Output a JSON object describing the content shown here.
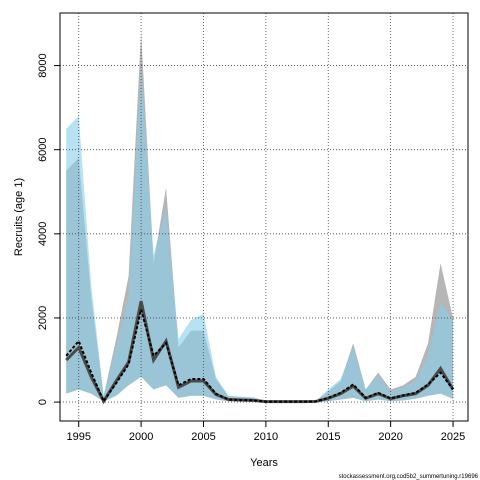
{
  "chart_data": {
    "type": "area",
    "xlabel": "Years",
    "ylabel": "Recruits (age 1)",
    "xlim": [
      1993.5,
      2026.2
    ],
    "ylim": [
      -450,
      9250
    ],
    "x_ticks": [
      1995,
      2000,
      2005,
      2010,
      2015,
      2020,
      2025
    ],
    "y_ticks": [
      0,
      2000,
      4000,
      6000,
      8000
    ],
    "grid": true,
    "years": [
      1994,
      1995,
      1996,
      1997,
      1998,
      1999,
      2000,
      2001,
      2002,
      2003,
      2004,
      2005,
      2006,
      2007,
      2008,
      2009,
      2010,
      2011,
      2012,
      2013,
      2014,
      2015,
      2016,
      2017,
      2018,
      2019,
      2020,
      2021,
      2022,
      2023,
      2024,
      2025
    ],
    "series": [
      {
        "color": "#9e9e9e",
        "lower": [
          200,
          300,
          200,
          10,
          150,
          400,
          600,
          300,
          400,
          100,
          150,
          150,
          60,
          20,
          10,
          10,
          3,
          3,
          3,
          3,
          3,
          20,
          60,
          100,
          20,
          60,
          20,
          40,
          80,
          150,
          200,
          80
        ],
        "median": [
          1000,
          1300,
          600,
          20,
          500,
          950,
          2400,
          1000,
          1450,
          350,
          500,
          500,
          180,
          60,
          50,
          40,
          10,
          10,
          10,
          10,
          15,
          90,
          200,
          380,
          90,
          200,
          80,
          150,
          200,
          400,
          800,
          300
        ],
        "upper": [
          5500,
          5800,
          2500,
          150,
          1500,
          3000,
          8800,
          3300,
          5100,
          1300,
          1700,
          1700,
          550,
          140,
          120,
          110,
          25,
          25,
          25,
          25,
          30,
          250,
          500,
          1400,
          300,
          700,
          300,
          400,
          600,
          1400,
          3300,
          2000
        ]
      },
      {
        "color": "#87ceeb",
        "lower": [
          200,
          300,
          200,
          10,
          150,
          400,
          600,
          300,
          400,
          100,
          150,
          150,
          60,
          20,
          10,
          10,
          3,
          3,
          3,
          3,
          3,
          20,
          60,
          100,
          20,
          60,
          20,
          40,
          80,
          150,
          200,
          80
        ],
        "median": [
          1100,
          1450,
          700,
          20,
          450,
          900,
          2200,
          1100,
          1400,
          400,
          550,
          550,
          200,
          60,
          50,
          40,
          10,
          10,
          10,
          10,
          15,
          100,
          220,
          420,
          100,
          220,
          90,
          160,
          220,
          420,
          700,
          300
        ],
        "upper": [
          6500,
          6800,
          2800,
          150,
          1300,
          2500,
          8000,
          3500,
          4600,
          1500,
          1950,
          2100,
          600,
          150,
          130,
          110,
          25,
          25,
          25,
          25,
          30,
          300,
          550,
          1300,
          300,
          650,
          250,
          350,
          500,
          1100,
          2400,
          1900
        ]
      }
    ]
  },
  "footer_note": "stockassessment.org,cod5b2_summertuning.r19696"
}
